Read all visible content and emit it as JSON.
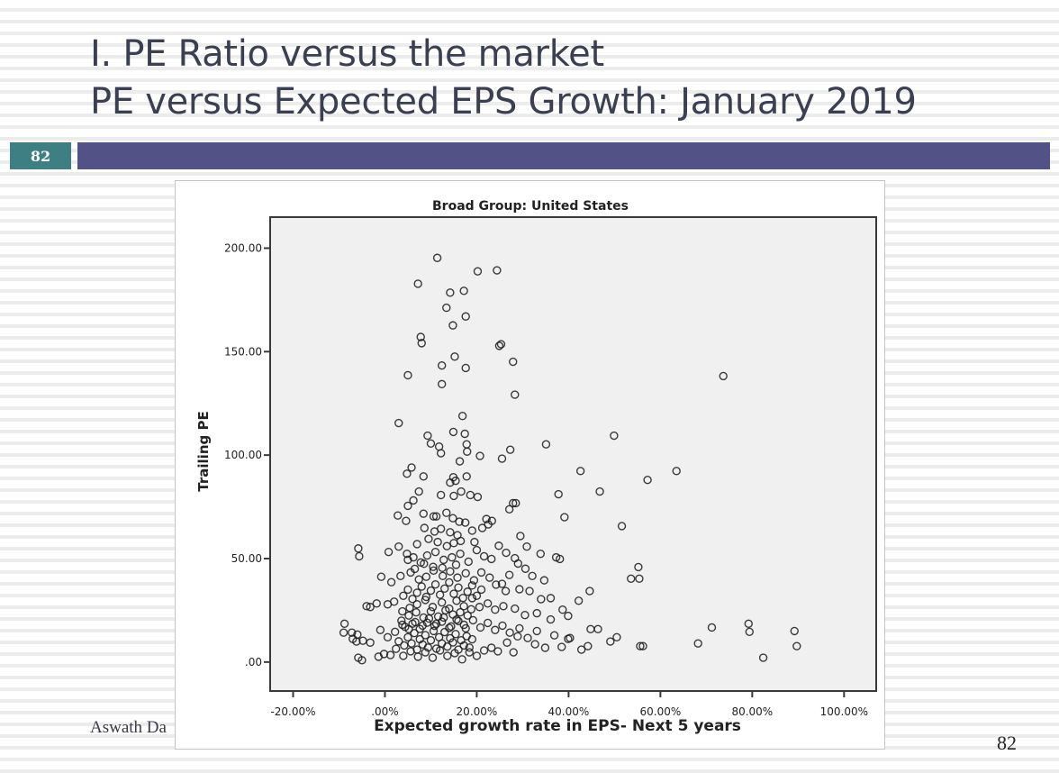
{
  "slide": {
    "title_line1": "I. PE Ratio versus the market",
    "title_line2": "PE versus Expected EPS Growth: January 2019",
    "slide_number_badge": "82",
    "author": "Aswath Da",
    "page_number": "82",
    "colors": {
      "badge": "#3e7f83",
      "title_bar": "#535286",
      "title_text": "#3b3f52",
      "plot_background": "#f0f0f0",
      "marker": "#1a1a1a"
    }
  },
  "chart_data": {
    "type": "scatter",
    "title": "Broad Group: United States",
    "xlabel": "Expected growth rate in EPS- Next 5 years",
    "ylabel": "Trailing PE",
    "xlim": [
      -25,
      107
    ],
    "ylim": [
      -14,
      215
    ],
    "x_ticks": [
      -20,
      0,
      20,
      40,
      60,
      80,
      100
    ],
    "x_tick_labels": [
      "-20.00%",
      ".00%",
      "20.00%",
      "40.00%",
      "60.00%",
      "80.00%",
      "100.00%"
    ],
    "y_ticks": [
      0,
      50,
      100,
      150,
      200
    ],
    "y_tick_labels": [
      ".00",
      "50.00",
      "100.00",
      "150.00",
      "200.00"
    ],
    "grid": false,
    "legend": "none",
    "marker": "open-circle",
    "x_units": "percent",
    "points": [
      [
        11.4,
        195.3
      ],
      [
        7.2,
        182.8
      ],
      [
        20.2,
        188.8
      ],
      [
        24.4,
        189.3
      ],
      [
        14.2,
        178.5
      ],
      [
        17.2,
        179.4
      ],
      [
        13.4,
        171.2
      ],
      [
        17.6,
        167.0
      ],
      [
        14.8,
        162.7
      ],
      [
        7.8,
        157.1
      ],
      [
        8.0,
        154.1
      ],
      [
        25.3,
        153.6
      ],
      [
        24.9,
        152.8
      ],
      [
        15.2,
        147.6
      ],
      [
        12.4,
        143.3
      ],
      [
        17.6,
        142.1
      ],
      [
        27.9,
        145.1
      ],
      [
        5.0,
        138.6
      ],
      [
        12.4,
        134.3
      ],
      [
        28.3,
        129.2
      ],
      [
        3.0,
        115.5
      ],
      [
        16.9,
        118.9
      ],
      [
        17.4,
        110.3
      ],
      [
        14.9,
        111.2
      ],
      [
        9.3,
        109.4
      ],
      [
        10.0,
        105.6
      ],
      [
        11.8,
        104.1
      ],
      [
        12.2,
        100.9
      ],
      [
        17.8,
        105.2
      ],
      [
        17.9,
        101.7
      ],
      [
        20.7,
        99.6
      ],
      [
        25.5,
        98.3
      ],
      [
        27.3,
        102.6
      ],
      [
        35.1,
        105.2
      ],
      [
        49.9,
        109.4
      ],
      [
        16.3,
        97.0
      ],
      [
        5.8,
        94.0
      ],
      [
        4.8,
        91.0
      ],
      [
        8.4,
        89.7
      ],
      [
        14.9,
        89.3
      ],
      [
        17.8,
        89.7
      ],
      [
        15.4,
        87.6
      ],
      [
        14.2,
        86.7
      ],
      [
        16.6,
        82.4
      ],
      [
        42.6,
        92.3
      ],
      [
        46.8,
        82.4
      ],
      [
        57.2,
        88.0
      ],
      [
        63.5,
        92.3
      ],
      [
        7.4,
        82.4
      ],
      [
        12.2,
        80.7
      ],
      [
        15.0,
        80.3
      ],
      [
        18.6,
        80.7
      ],
      [
        20.2,
        79.8
      ],
      [
        27.9,
        76.8
      ],
      [
        28.5,
        76.8
      ],
      [
        37.8,
        81.1
      ],
      [
        39.1,
        70.0
      ],
      [
        51.6,
        65.7
      ],
      [
        6.2,
        78.1
      ],
      [
        5.0,
        75.5
      ],
      [
        8.4,
        71.7
      ],
      [
        10.6,
        70.4
      ],
      [
        11.2,
        70.4
      ],
      [
        13.4,
        72.1
      ],
      [
        14.8,
        69.5
      ],
      [
        16.2,
        67.8
      ],
      [
        22.1,
        69.1
      ],
      [
        23.3,
        68.2
      ],
      [
        22.5,
        66.5
      ],
      [
        27.1,
        73.8
      ],
      [
        4.6,
        68.2
      ],
      [
        2.8,
        70.8
      ],
      [
        17.5,
        67.4
      ],
      [
        8.6,
        64.8
      ],
      [
        10.8,
        63.1
      ],
      [
        12.2,
        64.4
      ],
      [
        14.2,
        62.7
      ],
      [
        15.8,
        61.3
      ],
      [
        19.0,
        63.5
      ],
      [
        21.2,
        64.8
      ],
      [
        29.5,
        60.9
      ],
      [
        30.9,
        55.8
      ],
      [
        33.9,
        52.3
      ],
      [
        37.3,
        50.6
      ],
      [
        38.1,
        49.8
      ],
      [
        55.2,
        45.9
      ],
      [
        53.6,
        40.3
      ],
      [
        55.4,
        40.3
      ],
      [
        -5.8,
        54.9
      ],
      [
        -5.6,
        51.1
      ],
      [
        0.8,
        53.2
      ],
      [
        3.0,
        55.8
      ],
      [
        4.8,
        52.3
      ],
      [
        5.0,
        49.4
      ],
      [
        6.2,
        50.6
      ],
      [
        7.8,
        48.1
      ],
      [
        9.2,
        51.5
      ],
      [
        11.0,
        53.2
      ],
      [
        12.8,
        49.4
      ],
      [
        14.6,
        50.6
      ],
      [
        16.4,
        52.3
      ],
      [
        18.2,
        48.5
      ],
      [
        20.0,
        54.1
      ],
      [
        21.6,
        51.1
      ],
      [
        23.2,
        49.8
      ],
      [
        24.8,
        56.2
      ],
      [
        26.4,
        52.8
      ],
      [
        28.3,
        50.2
      ],
      [
        29.0,
        47.6
      ],
      [
        30.6,
        45.1
      ],
      [
        32.1,
        41.6
      ],
      [
        34.7,
        39.5
      ],
      [
        27.1,
        42.1
      ],
      [
        25.5,
        37.8
      ],
      [
        -0.8,
        41.2
      ],
      [
        1.4,
        38.6
      ],
      [
        3.4,
        41.6
      ],
      [
        5.6,
        43.3
      ],
      [
        7.4,
        39.9
      ],
      [
        9.0,
        41.2
      ],
      [
        10.6,
        44.2
      ],
      [
        12.6,
        41.6
      ],
      [
        14.2,
        43.8
      ],
      [
        15.8,
        40.8
      ],
      [
        17.6,
        42.9
      ],
      [
        19.4,
        39.5
      ],
      [
        21.0,
        43.3
      ],
      [
        22.8,
        40.8
      ],
      [
        24.2,
        37.4
      ],
      [
        26.3,
        34.3
      ],
      [
        29.3,
        35.2
      ],
      [
        31.5,
        34.3
      ],
      [
        34.0,
        30.4
      ],
      [
        36.1,
        30.9
      ],
      [
        42.2,
        29.6
      ],
      [
        44.6,
        34.3
      ],
      [
        -4.0,
        27.0
      ],
      [
        -3.2,
        26.6
      ],
      [
        -1.8,
        28.3
      ],
      [
        0.6,
        27.9
      ],
      [
        2.0,
        29.2
      ],
      [
        3.8,
        24.5
      ],
      [
        5.4,
        26.2
      ],
      [
        7.0,
        27.9
      ],
      [
        8.8,
        30.0
      ],
      [
        10.4,
        26.6
      ],
      [
        12.4,
        28.8
      ],
      [
        14.0,
        25.8
      ],
      [
        15.6,
        29.6
      ],
      [
        17.2,
        27.0
      ],
      [
        19.0,
        30.9
      ],
      [
        20.6,
        26.6
      ],
      [
        22.4,
        28.3
      ],
      [
        24.0,
        25.3
      ],
      [
        25.8,
        27.0
      ],
      [
        28.3,
        25.8
      ],
      [
        30.5,
        22.7
      ],
      [
        33.1,
        23.6
      ],
      [
        36.1,
        20.6
      ],
      [
        38.7,
        25.3
      ],
      [
        39.9,
        22.3
      ],
      [
        -8.8,
        18.5
      ],
      [
        -9.0,
        14.2
      ],
      [
        -7.2,
        14.2
      ],
      [
        -6.0,
        13.3
      ],
      [
        -7.0,
        11.2
      ],
      [
        -6.2,
        9.9
      ],
      [
        -4.8,
        10.3
      ],
      [
        -3.2,
        9.4
      ],
      [
        -1.0,
        15.5
      ],
      [
        0.6,
        12.0
      ],
      [
        2.2,
        14.6
      ],
      [
        3.8,
        18.0
      ],
      [
        5.2,
        15.9
      ],
      [
        6.6,
        19.3
      ],
      [
        8.2,
        17.6
      ],
      [
        9.6,
        21.0
      ],
      [
        11.2,
        18.5
      ],
      [
        12.8,
        21.5
      ],
      [
        14.4,
        17.2
      ],
      [
        16.0,
        19.8
      ],
      [
        17.6,
        16.3
      ],
      [
        19.2,
        20.2
      ],
      [
        20.8,
        16.7
      ],
      [
        22.4,
        18.9
      ],
      [
        24.0,
        15.5
      ],
      [
        25.6,
        17.6
      ],
      [
        27.2,
        14.2
      ],
      [
        28.9,
        12.4
      ],
      [
        29.3,
        16.3
      ],
      [
        31.1,
        11.6
      ],
      [
        33.1,
        15.0
      ],
      [
        32.7,
        8.6
      ],
      [
        34.9,
        6.9
      ],
      [
        36.9,
        12.9
      ],
      [
        38.5,
        7.3
      ],
      [
        39.9,
        11.2
      ],
      [
        40.3,
        11.6
      ],
      [
        42.8,
        6.0
      ],
      [
        44.2,
        7.7
      ],
      [
        44.8,
        15.9
      ],
      [
        46.4,
        15.9
      ],
      [
        49.1,
        9.9
      ],
      [
        50.5,
        12.0
      ],
      [
        55.6,
        7.7
      ],
      [
        56.2,
        7.7
      ],
      [
        68.2,
        9.0
      ],
      [
        71.2,
        16.7
      ],
      [
        79.2,
        18.5
      ],
      [
        79.4,
        14.6
      ],
      [
        82.4,
        2.1
      ],
      [
        89.2,
        15.0
      ],
      [
        89.7,
        7.7
      ],
      [
        73.7,
        138.2
      ],
      [
        -5.8,
        2.1
      ],
      [
        -5.0,
        0.9
      ],
      [
        -1.4,
        2.6
      ],
      [
        -0.2,
        3.9
      ],
      [
        1.2,
        3.4
      ],
      [
        2.4,
        6.4
      ],
      [
        4.0,
        3.0
      ],
      [
        5.6,
        5.2
      ],
      [
        7.2,
        2.6
      ],
      [
        8.8,
        4.7
      ],
      [
        10.4,
        2.1
      ],
      [
        12.0,
        5.6
      ],
      [
        13.6,
        3.0
      ],
      [
        15.2,
        4.3
      ],
      [
        16.8,
        1.3
      ],
      [
        18.4,
        4.7
      ],
      [
        20.0,
        3.0
      ],
      [
        21.6,
        5.6
      ],
      [
        23.2,
        6.9
      ],
      [
        24.6,
        5.2
      ],
      [
        26.6,
        9.4
      ],
      [
        28.0,
        4.7
      ],
      [
        3.0,
        10.0
      ],
      [
        4.2,
        8.0
      ],
      [
        5.0,
        12.0
      ],
      [
        5.8,
        9.0
      ],
      [
        6.4,
        14.0
      ],
      [
        7.0,
        6.0
      ],
      [
        7.6,
        11.0
      ],
      [
        8.2,
        8.5
      ],
      [
        8.8,
        13.0
      ],
      [
        9.4,
        7.0
      ],
      [
        10.0,
        10.5
      ],
      [
        10.6,
        15.0
      ],
      [
        11.2,
        6.5
      ],
      [
        11.8,
        12.0
      ],
      [
        12.4,
        9.0
      ],
      [
        13.0,
        14.5
      ],
      [
        13.6,
        7.5
      ],
      [
        14.2,
        11.5
      ],
      [
        14.8,
        9.5
      ],
      [
        15.4,
        13.5
      ],
      [
        16.0,
        6.0
      ],
      [
        16.6,
        10.5
      ],
      [
        17.2,
        8.0
      ],
      [
        17.8,
        12.5
      ],
      [
        18.4,
        7.0
      ],
      [
        19.0,
        11.0
      ],
      [
        3.6,
        20.0
      ],
      [
        4.4,
        17.0
      ],
      [
        5.2,
        22.5
      ],
      [
        6.0,
        18.5
      ],
      [
        6.8,
        24.0
      ],
      [
        7.6,
        16.0
      ],
      [
        8.4,
        21.5
      ],
      [
        9.2,
        19.0
      ],
      [
        10.0,
        24.5
      ],
      [
        10.8,
        17.5
      ],
      [
        11.6,
        22.0
      ],
      [
        12.4,
        19.5
      ],
      [
        13.2,
        25.0
      ],
      [
        14.0,
        16.5
      ],
      [
        14.8,
        23.0
      ],
      [
        15.6,
        20.5
      ],
      [
        16.4,
        24.0
      ],
      [
        17.2,
        18.0
      ],
      [
        18.0,
        22.5
      ],
      [
        18.8,
        25.5
      ],
      [
        4.0,
        32.0
      ],
      [
        5.0,
        35.0
      ],
      [
        6.0,
        30.5
      ],
      [
        7.0,
        33.5
      ],
      [
        8.0,
        36.5
      ],
      [
        9.0,
        31.5
      ],
      [
        10.0,
        34.5
      ],
      [
        11.0,
        37.5
      ],
      [
        12.0,
        32.5
      ],
      [
        13.0,
        35.5
      ],
      [
        14.0,
        38.5
      ],
      [
        15.0,
        33.0
      ],
      [
        16.0,
        36.0
      ],
      [
        17.0,
        31.0
      ],
      [
        18.0,
        34.0
      ],
      [
        19.0,
        37.0
      ],
      [
        20.0,
        32.0
      ],
      [
        21.0,
        35.0
      ],
      [
        6.5,
        45.0
      ],
      [
        8.5,
        47.5
      ],
      [
        10.5,
        46.0
      ],
      [
        12.5,
        45.5
      ],
      [
        13.5,
        56.0
      ],
      [
        15.5,
        47.0
      ],
      [
        15.0,
        57.5
      ],
      [
        16.5,
        58.5
      ],
      [
        11.5,
        58.0
      ],
      [
        9.5,
        59.5
      ],
      [
        7.0,
        57.0
      ],
      [
        19.5,
        58.0
      ]
    ]
  }
}
